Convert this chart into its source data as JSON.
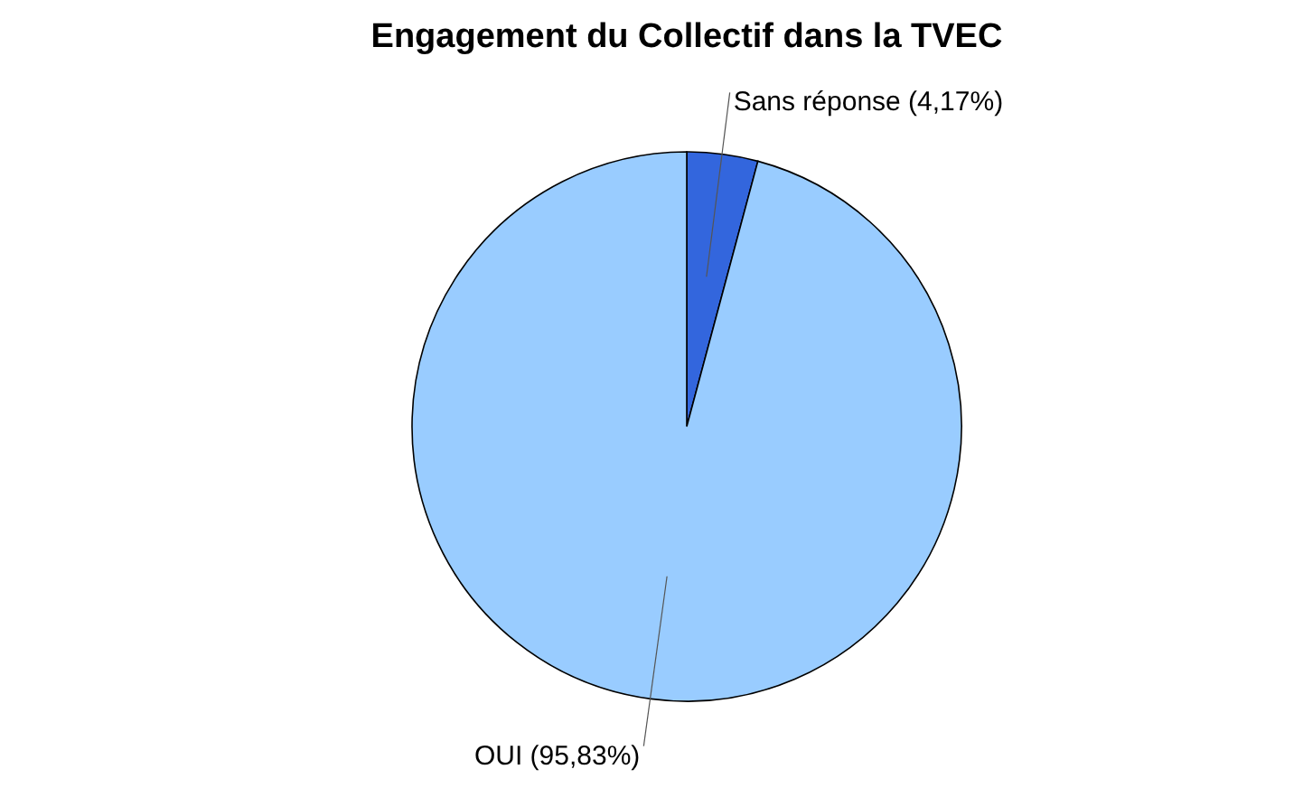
{
  "chart_data": {
    "type": "pie",
    "title": "Engagement du Collectif dans la TVEC",
    "categories": [
      "Sans réponse",
      "OUI"
    ],
    "values": [
      4.17,
      95.83
    ],
    "value_labels": [
      "(4,17%)",
      "(95,83%)"
    ],
    "colors": [
      "#3366dd",
      "#99ccff"
    ]
  }
}
